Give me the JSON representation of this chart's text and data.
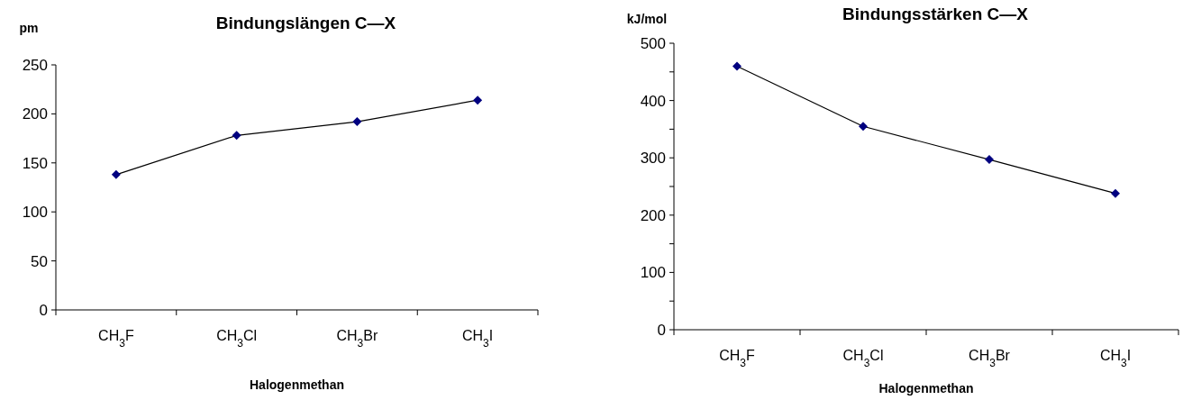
{
  "chart_data": [
    {
      "type": "line",
      "title": "Bindungslängen  C—X",
      "xlabel": "Halogenmethan",
      "ylabel": "pm",
      "categories": [
        "CH$_{3}$F",
        "CH$_{3}$Cl",
        "CH$_{3}$Br",
        "CH$_{3}$I"
      ],
      "series": [
        {
          "color": "#000080",
          "values": [
            138,
            178,
            192,
            214
          ]
        }
      ],
      "ylim": [
        0,
        250
      ],
      "yticks": [
        0,
        50,
        100,
        150,
        200,
        250
      ],
      "grid": false,
      "marker": "diamond",
      "line_style": "solid"
    },
    {
      "type": "line",
      "title": "Bindungsstärken  C—X",
      "xlabel": "Halogenmethan",
      "ylabel": "kJ/mol",
      "categories": [
        "CH$_{3}$F",
        "CH$_{3}$Cl",
        "CH$_{3}$Br",
        "CH$_{3}$I"
      ],
      "series": [
        {
          "color": "#000080",
          "values": [
            460,
            355,
            297,
            238
          ]
        }
      ],
      "ylim": [
        0,
        500
      ],
      "yticks": [
        0,
        {
          "value": 50,
          "label": null
        },
        100,
        {
          "value": 150,
          "label": null
        },
        200,
        {
          "value": 250,
          "label": null
        },
        300,
        {
          "value": 350,
          "label": null
        },
        400,
        {
          "value": 450,
          "label": null
        },
        500
      ],
      "grid": false,
      "marker": "diamond",
      "line_style": "solid"
    }
  ]
}
